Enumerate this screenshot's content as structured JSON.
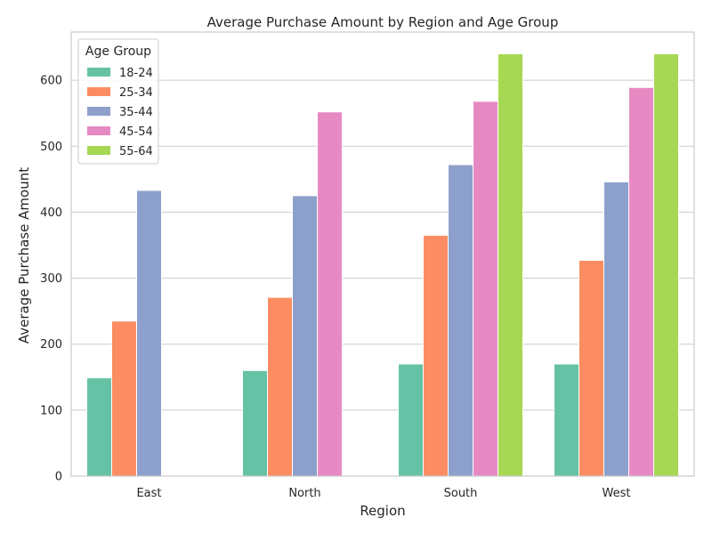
{
  "chart_data": {
    "type": "bar",
    "title": "Average Purchase Amount by Region and Age Group",
    "xlabel": "Region",
    "ylabel": "Average Purchase Amount",
    "categories": [
      "East",
      "North",
      "South",
      "West"
    ],
    "ylim": [
      0,
      673
    ],
    "yticks": [
      0,
      100,
      200,
      300,
      400,
      500,
      600
    ],
    "grid": "y",
    "legend": {
      "title": "Age Group",
      "placement": "top-left"
    },
    "series": [
      {
        "name": "18-24",
        "color": "#66c2a5",
        "values": [
          149,
          160,
          170,
          170
        ]
      },
      {
        "name": "25-34",
        "color": "#fc8d62",
        "values": [
          235,
          271,
          365,
          327
        ]
      },
      {
        "name": "35-44",
        "color": "#8da0cb",
        "values": [
          433,
          425,
          472,
          446
        ]
      },
      {
        "name": "45-54",
        "color": "#e78ac3",
        "values": [
          null,
          552,
          568,
          589
        ]
      },
      {
        "name": "55-64",
        "color": "#a6d854",
        "values": [
          null,
          null,
          640,
          640
        ]
      }
    ]
  }
}
